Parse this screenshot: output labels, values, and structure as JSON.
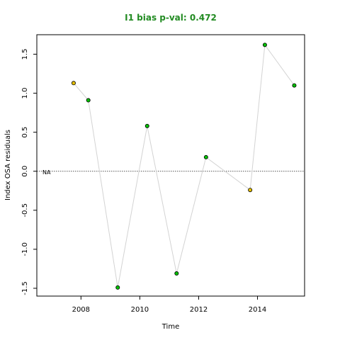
{
  "chart_data": {
    "type": "scatter",
    "title": "I1 bias p-val: 0.472",
    "title_color": "#228B22",
    "xlabel": "Time",
    "ylabel": "Index OSA residuals",
    "xlim": [
      2006.5,
      2015.6
    ],
    "ylim": [
      -1.6,
      1.75
    ],
    "x_ticks": [
      2008,
      2010,
      2012,
      2014
    ],
    "x_tick_labels": [
      "2008",
      "2010",
      "2012",
      "2014"
    ],
    "y_ticks": [
      -1.5,
      -1.0,
      -0.5,
      0.0,
      0.5,
      1.0,
      1.5
    ],
    "y_tick_labels": [
      "-1.5",
      "-1.0",
      "-0.5",
      "0.0",
      "0.5",
      "1.0",
      "1.5"
    ],
    "zero_line_label": "NA",
    "grid": false,
    "line_color": "#d3d3d3",
    "zero_line_color": "#555555",
    "positive_color": "#00c000",
    "negative_color": "#e6c000",
    "points": [
      {
        "x": 2007.75,
        "y": 1.13,
        "color": "#e6c000"
      },
      {
        "x": 2008.25,
        "y": 0.91,
        "color": "#00c000"
      },
      {
        "x": 2009.25,
        "y": -1.49,
        "color": "#00c000"
      },
      {
        "x": 2010.25,
        "y": 0.58,
        "color": "#00c000"
      },
      {
        "x": 2011.25,
        "y": -1.31,
        "color": "#00c000"
      },
      {
        "x": 2012.25,
        "y": 0.18,
        "color": "#00c000"
      },
      {
        "x": 2013.75,
        "y": -0.24,
        "color": "#e6c000"
      },
      {
        "x": 2014.25,
        "y": 1.62,
        "color": "#00c000"
      },
      {
        "x": 2015.25,
        "y": 1.1,
        "color": "#00c000"
      }
    ]
  }
}
